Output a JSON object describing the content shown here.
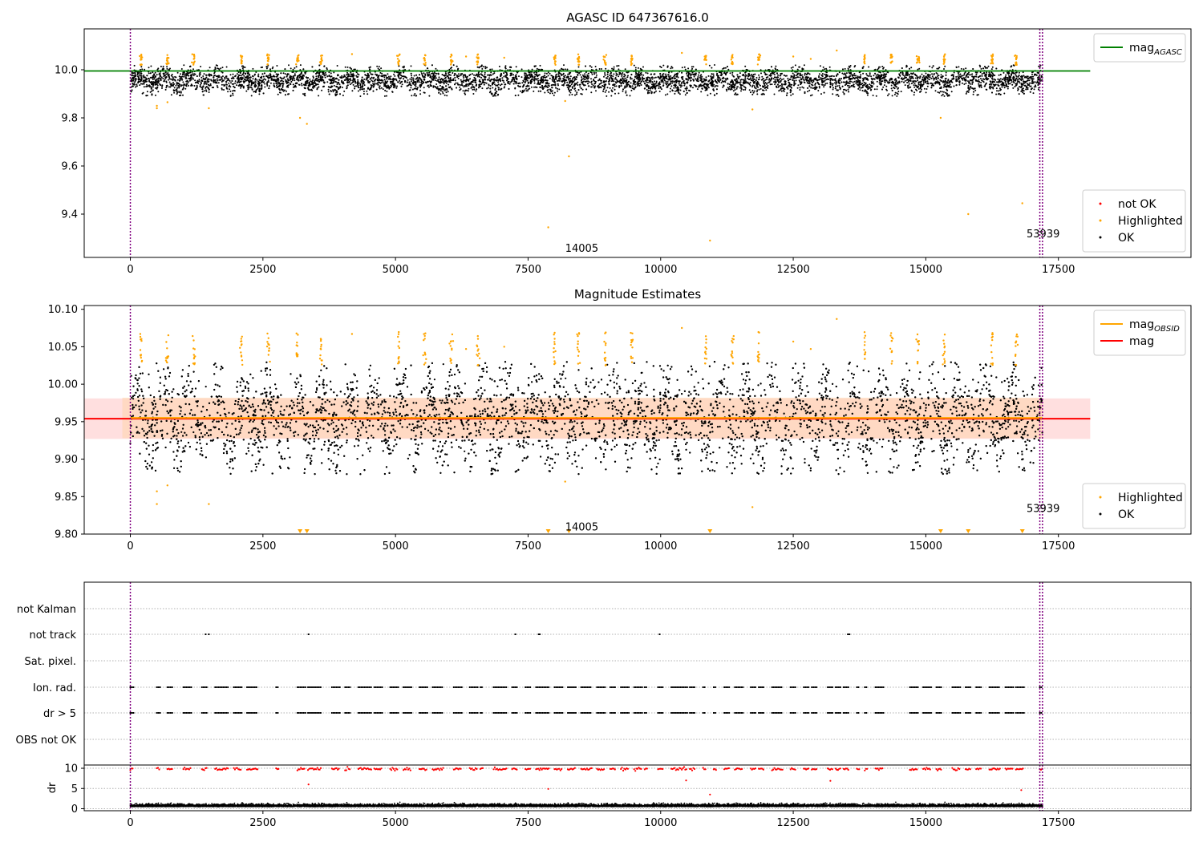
{
  "figure_title": "AGASC ID 647367616.0",
  "colors": {
    "ok": "#000000",
    "highlighted": "#ffa500",
    "not_ok": "#ff0000",
    "mag_agasc_line": "#008000",
    "mag_obsid_line": "#ffa500",
    "mag_line": "#ff0000",
    "mag_band": "#ffc0c0",
    "obsid_band": "#ffd6b0",
    "boundary": "#800080",
    "grid": "#b0b0b0"
  },
  "chart_data": [
    {
      "id": "agasc",
      "type": "scatter",
      "title": "AGASC ID 647367616.0",
      "xlabel": "",
      "ylabel": "",
      "xlim": [
        -870,
        20000
      ],
      "ylim": [
        9.22,
        10.17
      ],
      "xticks": [
        0,
        2500,
        5000,
        7500,
        10000,
        12500,
        15000,
        17500
      ],
      "yticks": [
        9.4,
        9.6,
        9.8,
        10.0
      ],
      "ytick_labels": [
        "9.4",
        "9.6",
        "9.8",
        "10.0"
      ],
      "grid": false,
      "hlines": [
        {
          "name": "mag_AGASC",
          "y": 9.995,
          "xmax": 18100
        }
      ],
      "vlines": [
        0,
        17150,
        17200
      ],
      "annotations": [
        {
          "text": "14005",
          "x": 8200,
          "y": 9.26
        },
        {
          "text": "53939",
          "x": 16900,
          "y": 9.32
        }
      ],
      "legends": [
        {
          "placement": "top-right",
          "entries": [
            {
              "label": "mag",
              "subscript": "AGASC",
              "kind": "line",
              "color_key": "mag_agasc_line"
            }
          ]
        },
        {
          "placement": "bottom-right",
          "entries": [
            {
              "label": "not OK",
              "kind": "marker",
              "color_key": "not_ok"
            },
            {
              "label": "Highlighted",
              "kind": "marker",
              "color_key": "highlighted"
            },
            {
              "label": "OK",
              "kind": "marker",
              "color_key": "ok"
            }
          ]
        }
      ],
      "series": [
        {
          "name": "OK",
          "marker_size": 2.0,
          "baseline": 9.955,
          "noise": 0.025,
          "ymin": 9.89,
          "ymax": 10.02,
          "period": 500,
          "amplitude": 0.015,
          "xmin": 0,
          "xmax": 17200
        },
        {
          "name": "Highlighted",
          "marker_size": 2.3,
          "points": [
            [
              500,
              9.85
            ],
            [
              500,
              9.84
            ],
            [
              700,
              9.865
            ],
            [
              1480,
              9.84
            ],
            [
              3200,
              9.8
            ],
            [
              3330,
              9.775
            ],
            [
              8200,
              9.87
            ],
            [
              8270,
              9.64
            ],
            [
              7880,
              9.345
            ],
            [
              10930,
              9.29
            ],
            [
              11730,
              9.835
            ],
            [
              15280,
              9.8
            ],
            [
              15800,
              9.4
            ],
            [
              16820,
              9.445
            ],
            [
              4180,
              10.065
            ],
            [
              6330,
              10.055
            ],
            [
              7050,
              10.05
            ],
            [
              12500,
              10.055
            ],
            [
              12830,
              10.045
            ],
            [
              13320,
              10.08
            ],
            [
              10400,
              10.07
            ]
          ]
        }
      ]
    },
    {
      "id": "estimates",
      "type": "scatter",
      "title": "Magnitude Estimates",
      "xlabel": "",
      "ylabel": "",
      "xlim": [
        -870,
        20000
      ],
      "ylim": [
        9.8,
        10.105
      ],
      "xticks": [
        0,
        2500,
        5000,
        7500,
        10000,
        12500,
        15000,
        17500
      ],
      "yticks": [
        9.8,
        9.85,
        9.9,
        9.95,
        10.0,
        10.05,
        10.1
      ],
      "ytick_labels": [
        "9.80",
        "9.85",
        "9.90",
        "9.95",
        "10.00",
        "10.05",
        "10.10"
      ],
      "grid": false,
      "hlines": [
        {
          "name": "mag_OBSID",
          "y": 9.955,
          "xmax": 17200
        },
        {
          "name": "mag",
          "y": 9.954,
          "xmax": 18100
        }
      ],
      "bands": [
        {
          "name": "mag",
          "y0": 9.927,
          "y1": 9.981,
          "xmax": 18100
        },
        {
          "name": "mag_OBSID",
          "y0": 9.928,
          "y1": 9.982,
          "xmax": 17200
        }
      ],
      "vlines": [
        0,
        17150,
        17200
      ],
      "annotations": [
        {
          "text": "14005",
          "x": 8200,
          "y": 9.81
        },
        {
          "text": "53939",
          "x": 16900,
          "y": 9.835
        }
      ],
      "legends": [
        {
          "placement": "top-right",
          "entries": [
            {
              "label": "mag",
              "subscript": "OBSID",
              "kind": "line",
              "color_key": "mag_obsid_line"
            },
            {
              "label": "mag",
              "subscript": "",
              "kind": "line",
              "color_key": "mag_line"
            }
          ]
        },
        {
          "placement": "bottom-right",
          "entries": [
            {
              "label": "Highlighted",
              "kind": "marker",
              "color_key": "highlighted"
            },
            {
              "label": "OK",
              "kind": "marker",
              "color_key": "ok"
            }
          ]
        }
      ],
      "series": [
        {
          "name": "OK",
          "marker_size": 2.2,
          "baseline": 9.955,
          "noise": 0.03,
          "ymin": 9.88,
          "ymax": 10.03,
          "period": 500,
          "amplitude": 0.025,
          "xmin": 0,
          "xmax": 17200
        },
        {
          "name": "Highlighted",
          "marker_size": 2.3,
          "points": [
            [
              500,
              9.857
            ],
            [
              500,
              9.84
            ],
            [
              700,
              9.865
            ],
            [
              1480,
              9.84
            ],
            [
              8200,
              9.87
            ],
            [
              11730,
              9.836
            ],
            [
              4180,
              10.067
            ],
            [
              6330,
              10.047
            ],
            [
              7050,
              10.05
            ],
            [
              12500,
              10.057
            ],
            [
              12830,
              10.047
            ],
            [
              13320,
              10.087
            ],
            [
              10400,
              10.075
            ]
          ]
        },
        {
          "name": "Highlighted (off-scale)",
          "marker": "triangle-down",
          "points": [
            [
              3200,
              9.802
            ],
            [
              3330,
              9.802
            ],
            [
              7880,
              9.802
            ],
            [
              8270,
              9.802
            ],
            [
              10930,
              9.802
            ],
            [
              15280,
              9.802
            ],
            [
              15800,
              9.802
            ],
            [
              16820,
              9.802
            ]
          ]
        }
      ]
    },
    {
      "id": "flags",
      "type": "scatter",
      "xlabel": "",
      "ylabel": "",
      "xlim": [
        -870,
        20000
      ],
      "categories": [
        "not Kalman",
        "not track",
        "Sat. pixel.",
        "Ion. rad.",
        "dr > 5",
        "OBS not OK"
      ],
      "grid": true,
      "vlines": [
        0,
        17150,
        17200
      ],
      "series": [
        {
          "name": "not track",
          "points": [
            [
              1420,
              "not track"
            ],
            [
              1480,
              "not track"
            ],
            [
              3360,
              "not track"
            ],
            [
              7260,
              "not track"
            ],
            [
              7700,
              "not track"
            ],
            [
              7720,
              "not track"
            ],
            [
              9980,
              "not track"
            ],
            [
              13530,
              "not track"
            ],
            [
              13560,
              "not track"
            ]
          ]
        },
        {
          "name": "Ion. rad.",
          "segments": [
            [
              0,
              60
            ],
            [
              500,
              560
            ],
            [
              700,
              800
            ],
            [
              1000,
              1150
            ],
            [
              1350,
              1450
            ],
            [
              1600,
              1850
            ],
            [
              1950,
              2100
            ],
            [
              2200,
              2400
            ],
            [
              2750,
              2800
            ],
            [
              3150,
              3300
            ],
            [
              3350,
              3600
            ],
            [
              3800,
              3950
            ],
            [
              4050,
              4150
            ],
            [
              4300,
              4550
            ],
            [
              4600,
              4750
            ],
            [
              4900,
              5050
            ],
            [
              5150,
              5300
            ],
            [
              5450,
              5600
            ],
            [
              5700,
              5900
            ],
            [
              6100,
              6250
            ],
            [
              6400,
              6550
            ],
            [
              6600,
              6650
            ],
            [
              6850,
              7100
            ],
            [
              7200,
              7300
            ],
            [
              7450,
              7550
            ],
            [
              7650,
              7900
            ],
            [
              8000,
              8150
            ],
            [
              8250,
              8400
            ],
            [
              8500,
              8700
            ],
            [
              8800,
              8950
            ],
            [
              9050,
              9150
            ],
            [
              9250,
              9400
            ],
            [
              9500,
              9650
            ],
            [
              9700,
              9750
            ],
            [
              9950,
              10050
            ],
            [
              10200,
              10500
            ],
            [
              10550,
              10650
            ],
            [
              10800,
              10850
            ],
            [
              11000,
              11050
            ],
            [
              11200,
              11300
            ],
            [
              11400,
              11550
            ],
            [
              11700,
              11800
            ],
            [
              11850,
              11950
            ],
            [
              12100,
              12300
            ],
            [
              12450,
              12550
            ],
            [
              12700,
              12800
            ],
            [
              12850,
              12950
            ],
            [
              13150,
              13250
            ],
            [
              13300,
              13400
            ],
            [
              13450,
              13550
            ],
            [
              13700,
              13750
            ],
            [
              13850,
              13900
            ],
            [
              14050,
              14200
            ],
            [
              14700,
              14850
            ],
            [
              14950,
              15100
            ],
            [
              15200,
              15300
            ],
            [
              15500,
              15650
            ],
            [
              15750,
              15850
            ],
            [
              15950,
              16050
            ],
            [
              16200,
              16400
            ],
            [
              16500,
              16650
            ],
            [
              16700,
              16850
            ],
            [
              17150,
              17200
            ]
          ]
        },
        {
          "name": "dr > 5",
          "segments": [
            [
              0,
              60
            ],
            [
              500,
              560
            ],
            [
              700,
              800
            ],
            [
              1000,
              1150
            ],
            [
              1350,
              1450
            ],
            [
              1600,
              1850
            ],
            [
              1950,
              2100
            ],
            [
              2200,
              2400
            ],
            [
              2750,
              2800
            ],
            [
              3150,
              3300
            ],
            [
              3350,
              3600
            ],
            [
              3800,
              3950
            ],
            [
              4050,
              4150
            ],
            [
              4300,
              4550
            ],
            [
              4600,
              4750
            ],
            [
              4900,
              5050
            ],
            [
              5150,
              5300
            ],
            [
              5450,
              5600
            ],
            [
              5700,
              5900
            ],
            [
              6100,
              6250
            ],
            [
              6400,
              6550
            ],
            [
              6600,
              6650
            ],
            [
              6850,
              7100
            ],
            [
              7200,
              7300
            ],
            [
              7450,
              7550
            ],
            [
              7650,
              7900
            ],
            [
              8000,
              8150
            ],
            [
              8250,
              8400
            ],
            [
              8500,
              8700
            ],
            [
              8800,
              8950
            ],
            [
              9050,
              9150
            ],
            [
              9250,
              9400
            ],
            [
              9500,
              9650
            ],
            [
              9700,
              9750
            ],
            [
              9950,
              10050
            ],
            [
              10200,
              10500
            ],
            [
              10550,
              10650
            ],
            [
              10800,
              10850
            ],
            [
              11000,
              11050
            ],
            [
              11200,
              11300
            ],
            [
              11400,
              11550
            ],
            [
              11700,
              11800
            ],
            [
              11850,
              11950
            ],
            [
              12100,
              12300
            ],
            [
              12450,
              12550
            ],
            [
              12700,
              12800
            ],
            [
              12850,
              12950
            ],
            [
              13150,
              13250
            ],
            [
              13300,
              13400
            ],
            [
              13450,
              13550
            ],
            [
              13700,
              13750
            ],
            [
              13850,
              13900
            ],
            [
              14050,
              14200
            ],
            [
              14700,
              14850
            ],
            [
              14950,
              15100
            ],
            [
              15200,
              15300
            ],
            [
              15500,
              15650
            ],
            [
              15750,
              15850
            ],
            [
              15950,
              16050
            ],
            [
              16200,
              16400
            ],
            [
              16500,
              16650
            ],
            [
              16700,
              16850
            ],
            [
              17150,
              17200
            ]
          ]
        }
      ]
    },
    {
      "id": "dr",
      "type": "scatter",
      "xlabel": "",
      "ylabel": "dr",
      "xlim": [
        -870,
        20000
      ],
      "ylim": [
        -0.5,
        10.8
      ],
      "xticks": [
        0,
        2500,
        5000,
        7500,
        10000,
        12500,
        15000,
        17500
      ],
      "yticks": [
        0,
        5,
        10
      ],
      "ytick_labels": [
        "0",
        "5",
        "10"
      ],
      "grid": true,
      "vlines": [
        0,
        17150,
        17200
      ],
      "series": [
        {
          "name": "OK",
          "baseline": 0.5,
          "noise": 0.3,
          "ymin": 0,
          "ymax": 1.6,
          "xmin": 0,
          "xmax": 17200
        },
        {
          "name": "not OK",
          "level": 9.8,
          "segments_ref": "Ion. rad."
        },
        {
          "name": "not OK (isolated)",
          "points": [
            [
              3360,
              6.0
            ],
            [
              7880,
              4.9
            ],
            [
              10480,
              7.0
            ],
            [
              10930,
              3.5
            ],
            [
              13200,
              6.9
            ],
            [
              16800,
              4.6
            ]
          ]
        }
      ]
    }
  ]
}
